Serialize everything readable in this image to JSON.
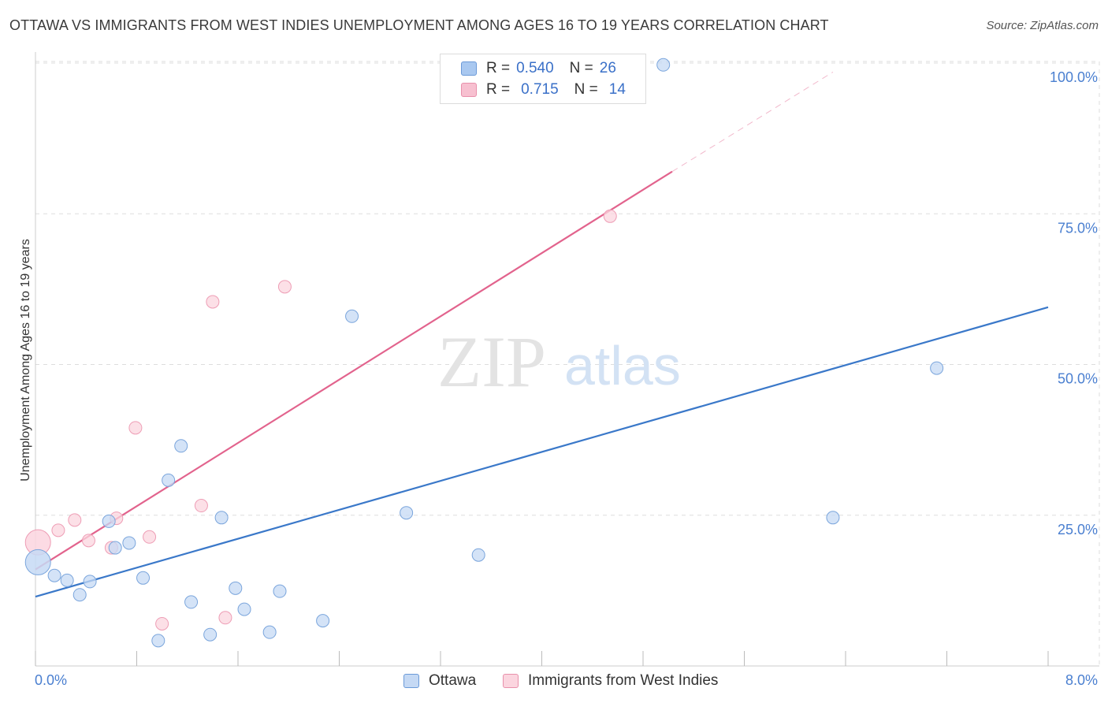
{
  "title": "OTTAWA VS IMMIGRANTS FROM WEST INDIES UNEMPLOYMENT AMONG AGES 16 TO 19 YEARS CORRELATION CHART",
  "source": "Source: ZipAtlas.com",
  "watermark": {
    "zip": "ZIP",
    "atlas": "atlas"
  },
  "legend": {
    "rows": [
      {
        "r_label": "R = ",
        "r_value": "0.540",
        "n_label": "N = ",
        "n_value": "26",
        "color": "#a9c8f0",
        "border": "#6b9ad8"
      },
      {
        "r_label": "R = ",
        "r_value": "0.715",
        "n_label": "N = ",
        "n_value": "14",
        "color": "#f7c0d0",
        "border": "#e890ab"
      }
    ]
  },
  "bottom_legend": [
    {
      "label": "Ottawa",
      "color": "#c5d9f4",
      "border": "#6b9ad8"
    },
    {
      "label": "Immigrants from West Indies",
      "color": "#fbd5df",
      "border": "#e890ab"
    }
  ],
  "chart_data": {
    "type": "scatter",
    "title": "OTTAWA VS IMMIGRANTS FROM WEST INDIES UNEMPLOYMENT AMONG AGES 16 TO 19 YEARS CORRELATION CHART",
    "xlabel": "",
    "ylabel": "Unemployment Among Ages 16 to 19 years",
    "xlim": [
      0,
      8
    ],
    "ylim": [
      0,
      100
    ],
    "x_tick_labels": [
      "0.0%",
      "8.0%"
    ],
    "y_ticks": [
      25,
      50,
      75,
      100
    ],
    "y_tick_labels": [
      "25.0%",
      "50.0%",
      "75.0%",
      "100.0%"
    ],
    "grid": true,
    "series": [
      {
        "name": "Ottawa",
        "color": "#3a78c9",
        "fill": "#c5d9f4",
        "stroke": "#7aa5dc",
        "points": [
          [
            0.02,
            17.2,
            "large"
          ],
          [
            0.15,
            15.0
          ],
          [
            0.25,
            14.2
          ],
          [
            0.35,
            11.8
          ],
          [
            0.43,
            14.0
          ],
          [
            0.58,
            24.0
          ],
          [
            0.63,
            19.6
          ],
          [
            0.74,
            20.4
          ],
          [
            0.85,
            14.6
          ],
          [
            0.97,
            4.2
          ],
          [
            1.05,
            30.8
          ],
          [
            1.15,
            36.5
          ],
          [
            1.23,
            10.6
          ],
          [
            1.38,
            5.2
          ],
          [
            1.47,
            24.6
          ],
          [
            1.58,
            12.9
          ],
          [
            1.65,
            9.4
          ],
          [
            1.85,
            5.6
          ],
          [
            1.93,
            12.4
          ],
          [
            2.27,
            7.5
          ],
          [
            2.5,
            58.0
          ],
          [
            2.93,
            25.4
          ],
          [
            3.5,
            18.4
          ],
          [
            4.96,
            99.7
          ],
          [
            6.3,
            24.6
          ],
          [
            7.12,
            49.4
          ]
        ],
        "trend": {
          "x": [
            0,
            8
          ],
          "y": [
            11.5,
            59.5
          ]
        }
      },
      {
        "name": "Immigrants from West Indies",
        "color": "#e2638d",
        "fill": "#fbd5df",
        "stroke": "#ee9db5",
        "points": [
          [
            0.02,
            20.5,
            "large"
          ],
          [
            0.18,
            22.5
          ],
          [
            0.31,
            24.2
          ],
          [
            0.42,
            20.8
          ],
          [
            0.6,
            19.6
          ],
          [
            0.64,
            24.5
          ],
          [
            0.79,
            39.5
          ],
          [
            0.9,
            21.4
          ],
          [
            1.0,
            7.0
          ],
          [
            1.31,
            26.6
          ],
          [
            1.4,
            60.4
          ],
          [
            1.5,
            8.0
          ],
          [
            1.97,
            62.9
          ],
          [
            4.54,
            74.6
          ]
        ],
        "trend": {
          "x": [
            0,
            5.03
          ],
          "y": [
            16.0,
            82.0
          ]
        },
        "trend_extension": {
          "x": [
            5.03,
            6.3
          ],
          "y": [
            82.0,
            98.5
          ]
        }
      }
    ]
  }
}
